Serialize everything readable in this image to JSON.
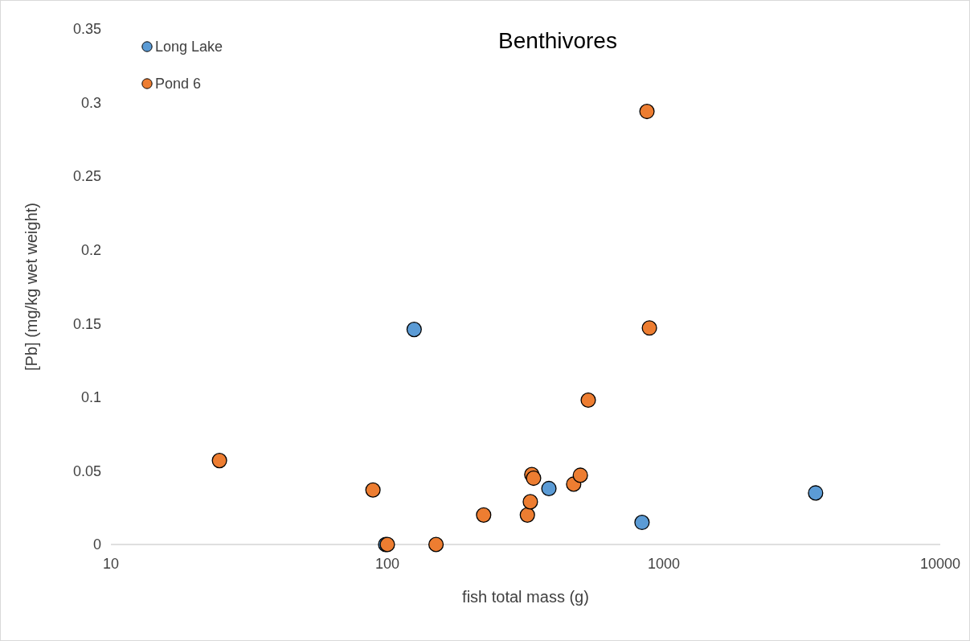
{
  "chart_data": {
    "type": "scatter",
    "title": "Benthivores",
    "xlabel": "fish total mass (g)",
    "ylabel": "[Pb] (mg/kg wet weight)",
    "log": "x",
    "xlim": [
      10,
      10000
    ],
    "xticks": [
      10,
      100,
      1000,
      10000
    ],
    "ylim": [
      0,
      0.35
    ],
    "yticks": [
      0,
      0.05,
      0.1,
      0.15,
      0.2,
      0.25,
      0.3,
      0.35
    ],
    "grid": false,
    "legend": "top left",
    "marker": "circle",
    "series": [
      {
        "name": "Long Lake",
        "color": "#5b9bd5",
        "x": [
          125,
          384,
          834,
          3540,
          98.6
        ],
        "values": [
          0.146,
          0.038,
          0.015,
          0.035,
          0
        ]
      },
      {
        "name": "Pond 6",
        "color": "#ed7d31",
        "x": [
          24.7,
          88.7,
          100,
          150,
          223,
          321,
          329,
          333,
          338,
          472,
          499,
          533,
          869,
          887
        ],
        "values": [
          0.057,
          0.037,
          0,
          0,
          0.02,
          0.02,
          0.029,
          0.0475,
          0.045,
          0.041,
          0.047,
          0.098,
          0.294,
          0.147
        ]
      }
    ]
  }
}
